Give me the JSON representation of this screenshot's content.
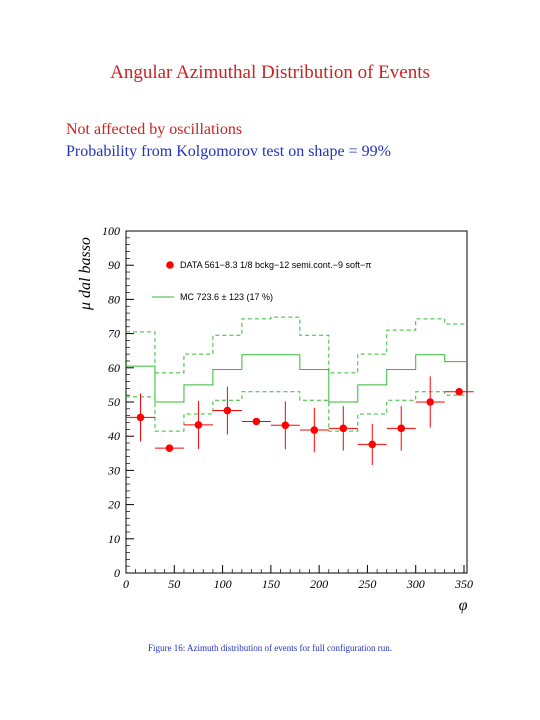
{
  "page": {
    "title": "Angular Azimuthal Distribution of Events",
    "note_oscillation": "Not affected by oscillations",
    "note_ks": "Probability from Kolgomorov test on shape = 99%",
    "caption": "Figure 16: Azimuth distribution of events for full configuration run."
  },
  "chart_data": {
    "type": "scatter",
    "xlabel": "φ",
    "ylabel": "μ dal basso",
    "xlim": [
      0,
      350
    ],
    "ylim": [
      0,
      100
    ],
    "xticks": [
      0,
      50,
      100,
      150,
      200,
      250,
      300,
      350
    ],
    "yticks": [
      0,
      10,
      20,
      30,
      40,
      50,
      60,
      70,
      80,
      90,
      100
    ],
    "data_color": "#ff0000",
    "mc_color": "#33bb33",
    "series": [
      {
        "name": "DATA 561−8.3 1/8 bckg−12 semi.cont.−9 soft−π",
        "kind": "points",
        "x": [
          15,
          45,
          75,
          105,
          135,
          165,
          195,
          225,
          255,
          285,
          315,
          345
        ],
        "y": [
          45.5,
          36.5,
          43.3,
          47.5,
          44.3,
          43.2,
          41.8,
          42.3,
          37.6,
          42.3,
          50,
          53
        ],
        "xerr": 15,
        "yerr": [
          7,
          0,
          7,
          7,
          0,
          7,
          6.5,
          6.5,
          6,
          6.5,
          7.5,
          0
        ]
      },
      {
        "name": "MC 723.6 ± 123 (17 %)",
        "kind": "histogram",
        "edges": [
          0,
          30,
          60,
          90,
          120,
          150,
          180,
          210,
          240,
          270,
          300,
          330,
          360
        ],
        "central": [
          60.5,
          50,
          55,
          59.5,
          63.8,
          63.8,
          59.5,
          50,
          55,
          59.5,
          63.8,
          61.8
        ],
        "upper": [
          70.5,
          58.5,
          64,
          69.5,
          74.3,
          74.8,
          69.5,
          58.5,
          64,
          71,
          74.3,
          72.8
        ],
        "lower": [
          51.5,
          41.5,
          46.5,
          50.5,
          53,
          53,
          50.5,
          41.5,
          46.5,
          50.5,
          53,
          52
        ]
      }
    ]
  }
}
